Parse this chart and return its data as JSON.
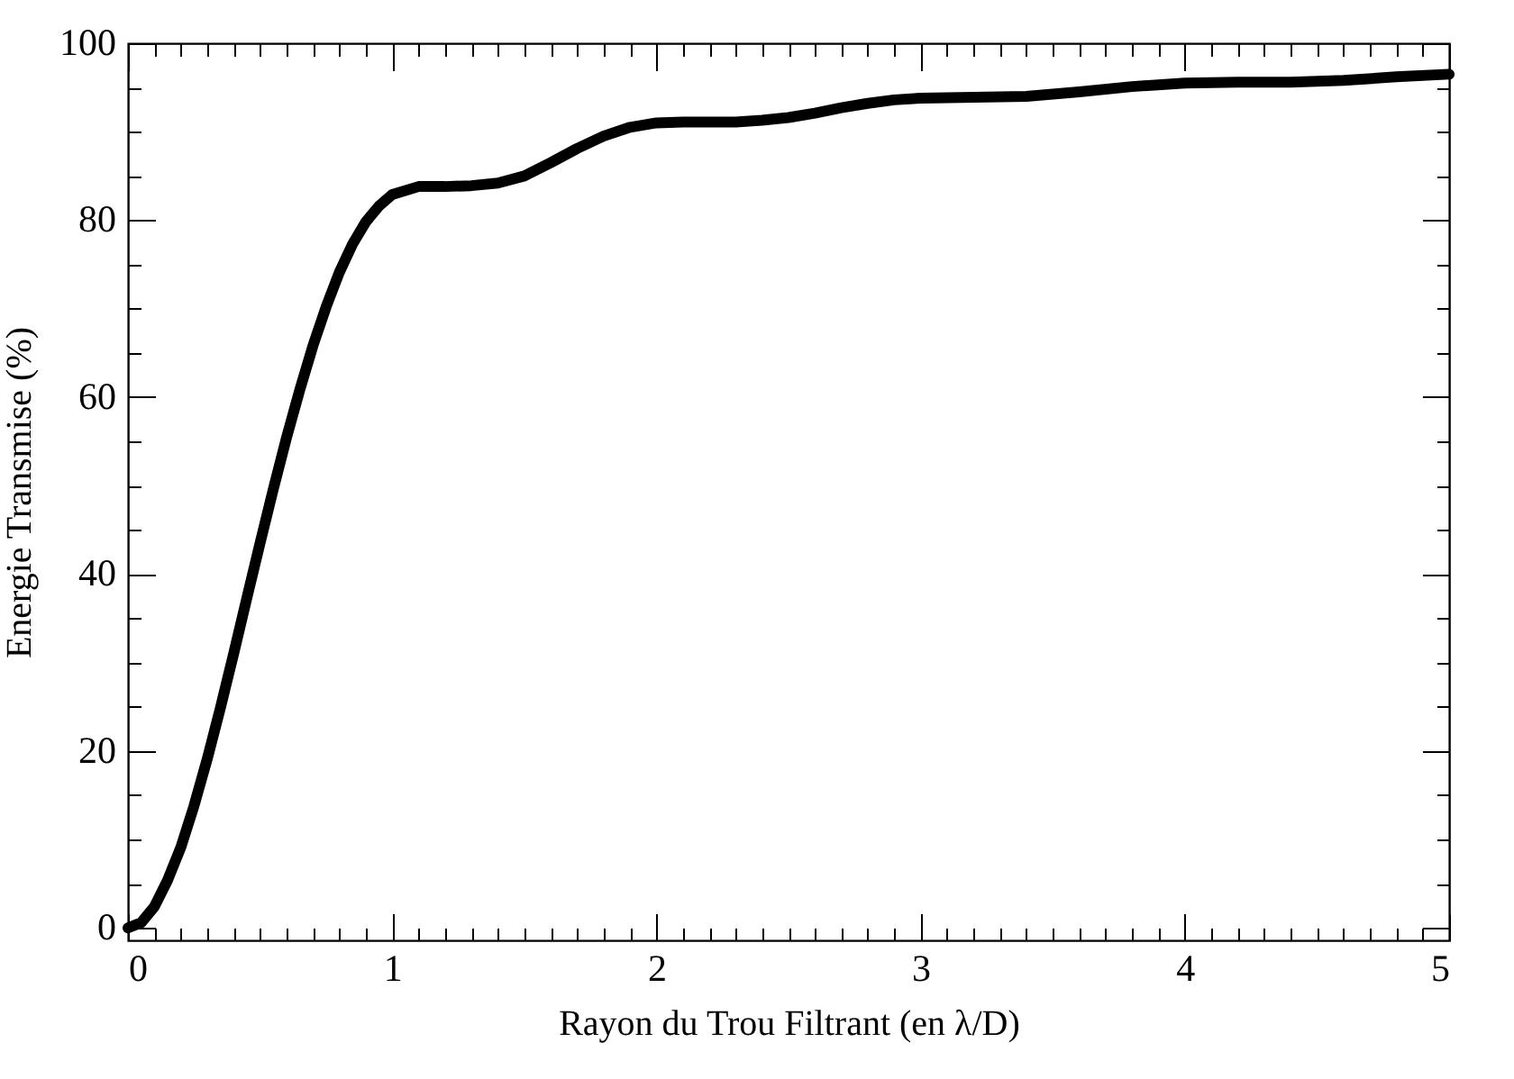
{
  "chart_data": {
    "type": "line",
    "xlabel": "Rayon du Trou Filtrant (en λ/D)",
    "ylabel": "Energie Transmise (%)",
    "x": [
      0,
      0.05,
      0.1,
      0.15,
      0.2,
      0.25,
      0.3,
      0.35,
      0.4,
      0.45,
      0.5,
      0.55,
      0.6,
      0.65,
      0.7,
      0.75,
      0.8,
      0.85,
      0.9,
      0.95,
      1.0,
      1.1,
      1.2,
      1.3,
      1.4,
      1.5,
      1.6,
      1.7,
      1.8,
      1.9,
      2.0,
      2.1,
      2.2,
      2.3,
      2.4,
      2.5,
      2.6,
      2.7,
      2.8,
      2.9,
      3.0,
      3.2,
      3.4,
      3.6,
      3.8,
      4.0,
      4.2,
      4.4,
      4.6,
      4.8,
      5.0
    ],
    "series": [
      {
        "color": "#000000",
        "values": [
          0,
          0.6,
          2.4,
          5.4,
          9.1,
          13.8,
          19.1,
          24.9,
          31.0,
          37.3,
          43.5,
          49.6,
          55.4,
          60.8,
          65.8,
          70.2,
          74.1,
          77.3,
          79.8,
          81.6,
          82.9,
          83.8,
          83.8,
          83.9,
          84.2,
          85.0,
          86.5,
          88.1,
          89.5,
          90.5,
          91.0,
          91.1,
          91.1,
          91.1,
          91.3,
          91.6,
          92.1,
          92.7,
          93.2,
          93.6,
          93.8,
          93.9,
          94.0,
          94.5,
          95.1,
          95.5,
          95.6,
          95.6,
          95.8,
          96.2,
          96.5
        ]
      }
    ],
    "xlim": [
      0,
      5
    ],
    "ylim": [
      -1.4,
      100
    ],
    "xticks": [
      0,
      {
        "value": 0.1,
        "label": null
      },
      {
        "value": 0.2,
        "label": null
      },
      {
        "value": 0.3,
        "label": null
      },
      {
        "value": 0.4,
        "label": null
      },
      {
        "value": 0.5,
        "label": null
      },
      {
        "value": 0.6,
        "label": null
      },
      {
        "value": 0.7,
        "label": null
      },
      {
        "value": 0.8,
        "label": null
      },
      {
        "value": 0.9,
        "label": null
      },
      1,
      {
        "value": 1.1,
        "label": null
      },
      {
        "value": 1.2,
        "label": null
      },
      {
        "value": 1.3,
        "label": null
      },
      {
        "value": 1.4,
        "label": null
      },
      {
        "value": 1.5,
        "label": null
      },
      {
        "value": 1.6,
        "label": null
      },
      {
        "value": 1.7,
        "label": null
      },
      {
        "value": 1.8,
        "label": null
      },
      {
        "value": 1.9,
        "label": null
      },
      2,
      {
        "value": 2.1,
        "label": null
      },
      {
        "value": 2.2,
        "label": null
      },
      {
        "value": 2.3,
        "label": null
      },
      {
        "value": 2.4,
        "label": null
      },
      {
        "value": 2.5,
        "label": null
      },
      {
        "value": 2.6,
        "label": null
      },
      {
        "value": 2.7,
        "label": null
      },
      {
        "value": 2.8,
        "label": null
      },
      {
        "value": 2.9,
        "label": null
      },
      3,
      {
        "value": 3.1,
        "label": null
      },
      {
        "value": 3.2,
        "label": null
      },
      {
        "value": 3.3,
        "label": null
      },
      {
        "value": 3.4,
        "label": null
      },
      {
        "value": 3.5,
        "label": null
      },
      {
        "value": 3.6,
        "label": null
      },
      {
        "value": 3.7,
        "label": null
      },
      {
        "value": 3.8,
        "label": null
      },
      {
        "value": 3.9,
        "label": null
      },
      4,
      {
        "value": 4.1,
        "label": null
      },
      {
        "value": 4.2,
        "label": null
      },
      {
        "value": 4.3,
        "label": null
      },
      {
        "value": 4.4,
        "label": null
      },
      {
        "value": 4.5,
        "label": null
      },
      {
        "value": 4.6,
        "label": null
      },
      {
        "value": 4.7,
        "label": null
      },
      {
        "value": 4.8,
        "label": null
      },
      {
        "value": 4.9,
        "label": null
      },
      5
    ],
    "yticks": [
      0,
      {
        "value": 5,
        "label": null
      },
      {
        "value": 10,
        "label": null
      },
      {
        "value": 15,
        "label": null
      },
      20,
      {
        "value": 25,
        "label": null
      },
      {
        "value": 30,
        "label": null
      },
      {
        "value": 35,
        "label": null
      },
      40,
      {
        "value": 45,
        "label": null
      },
      {
        "value": 50,
        "label": null
      },
      {
        "value": 55,
        "label": null
      },
      60,
      {
        "value": 65,
        "label": null
      },
      {
        "value": 70,
        "label": null
      },
      {
        "value": 75,
        "label": null
      },
      80,
      {
        "value": 85,
        "label": null
      },
      {
        "value": 90,
        "label": null
      },
      {
        "value": 95,
        "label": null
      },
      100
    ],
    "grid": false,
    "line_style": "solid"
  }
}
